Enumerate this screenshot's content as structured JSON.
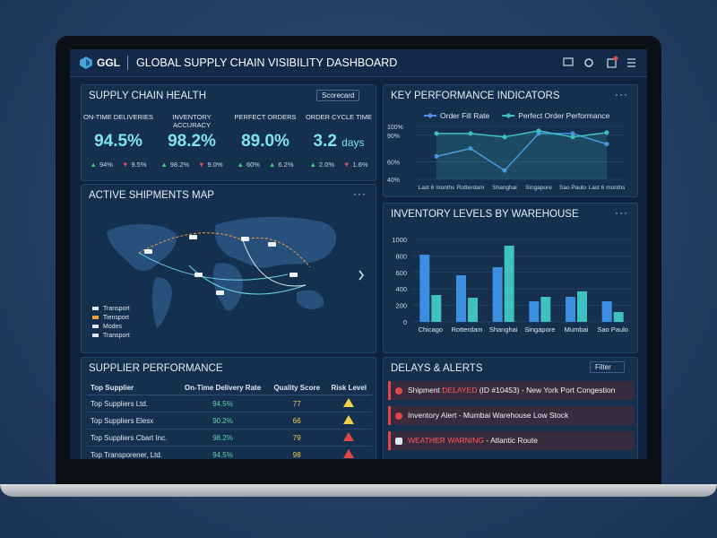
{
  "header": {
    "logo": "GGL",
    "title": "GLOBAL SUPPLY CHAIN VISIBILITY DASHBOARD"
  },
  "health": {
    "title": "SUPPLY CHAIN HEALTH",
    "button": "Scorecard",
    "metrics": [
      {
        "label": "ON-TIME DELIVERIES",
        "value": "94.5%",
        "deltas": [
          {
            "dir": "up",
            "text": "94%"
          },
          {
            "dir": "down",
            "text": "9.5%"
          }
        ]
      },
      {
        "label": "INVENTORY ACCURACY",
        "value": "98.2%",
        "deltas": [
          {
            "dir": "up",
            "text": "98.2%"
          },
          {
            "dir": "down",
            "text": "9.0%"
          }
        ]
      },
      {
        "label": "PERFECT ORDERS",
        "value": "89.0%",
        "deltas": [
          {
            "dir": "up",
            "text": "60%"
          },
          {
            "dir": "up",
            "text": "6.2%"
          }
        ]
      },
      {
        "label": "ORDER CYCLE TIME",
        "value": "3.2",
        "unit": "days",
        "deltas": [
          {
            "dir": "up",
            "text": "2.0%"
          },
          {
            "dir": "down",
            "text": "1.6%"
          }
        ]
      }
    ]
  },
  "kpi": {
    "title": "KEY PERFORMANCE INDICATORS",
    "chart": {
      "type": "line",
      "categories": [
        "Last 6 months",
        "Rotterdam",
        "Shanghai",
        "Singapore",
        "Sao Paulo",
        "Last 6 months"
      ],
      "series": [
        {
          "name": "Order Fill Rate",
          "color": "#4a90e2",
          "values": [
            66,
            75,
            50,
            92,
            92,
            80
          ]
        },
        {
          "name": "Perfect Order Performance",
          "color": "#3fc1c0",
          "values": [
            92,
            92,
            88,
            95,
            88,
            93
          ]
        }
      ],
      "ylim": [
        40,
        100
      ],
      "yticks": [
        {
          "value": 100,
          "label": "100%"
        },
        {
          "value": 90,
          "label": "90%"
        },
        {
          "value": 60,
          "label": "60%"
        },
        {
          "value": 40,
          "label": "40%"
        }
      ],
      "grid": true
    }
  },
  "map": {
    "title": "ACTIVE SHIPMENTS MAP",
    "legend": [
      "Transport",
      "Tiensport",
      "Modes",
      "Transport"
    ]
  },
  "inventory": {
    "title": "INVENTORY LEVELS BY WAREHOUSE",
    "chart": {
      "type": "bar",
      "categories": [
        "Chicago",
        "Rotterdam",
        "Shanghai",
        "Singapore",
        "Mumbai",
        "Sao Paulo"
      ],
      "series": [
        {
          "color": "#3b8fe0",
          "values": [
            815,
            565,
            663,
            250,
            304,
            250
          ]
        },
        {
          "color": "#3fc1c0",
          "values": [
            326,
            293,
            924,
            304,
            370,
            120
          ]
        }
      ],
      "ylim": [
        0,
        1000
      ],
      "yticks": [
        0,
        200,
        400,
        600,
        800,
        1000
      ],
      "grid": true
    }
  },
  "suppliers": {
    "title": "SUPPLIER PERFORMANCE",
    "columns": [
      "Top Supplier",
      "On-Time Delivery Rate",
      "Quality Score",
      "Risk Level"
    ],
    "rows": [
      {
        "cells": [
          "Top Suppliers Ltd.",
          "94.5%",
          "77"
        ],
        "risk": "medium"
      },
      {
        "cells": [
          "Top Suppliers Elesx",
          "90.2%",
          "66"
        ],
        "risk": "medium"
      },
      {
        "cells": [
          "Top Suppliers Cbart Inc.",
          "98.2%",
          "79"
        ],
        "risk": "high"
      },
      {
        "cells": [
          "Top Transporener, Ltd.",
          "94.5%",
          "98"
        ],
        "risk": "high"
      }
    ]
  },
  "alerts": {
    "title": "DELAYS & ALERTS",
    "filter": "Filter",
    "items": [
      {
        "icon": "alert",
        "parts": [
          {
            "text": "Shipment ",
            "style": "normal"
          },
          {
            "text": "DELAYED",
            "style": "alert"
          },
          {
            "text": " (ID #10453) - New York Port Congestion",
            "style": "normal"
          }
        ]
      },
      {
        "icon": "alert",
        "parts": [
          {
            "text": "Inventory Alert - Mumbai Warehouse Low Stock",
            "style": "normal"
          }
        ]
      },
      {
        "icon": "weather",
        "parts": [
          {
            "text": "WEATHER WARNING",
            "style": "alert"
          },
          {
            "text": " - Atlantic Route",
            "style": "normal"
          }
        ]
      }
    ]
  }
}
